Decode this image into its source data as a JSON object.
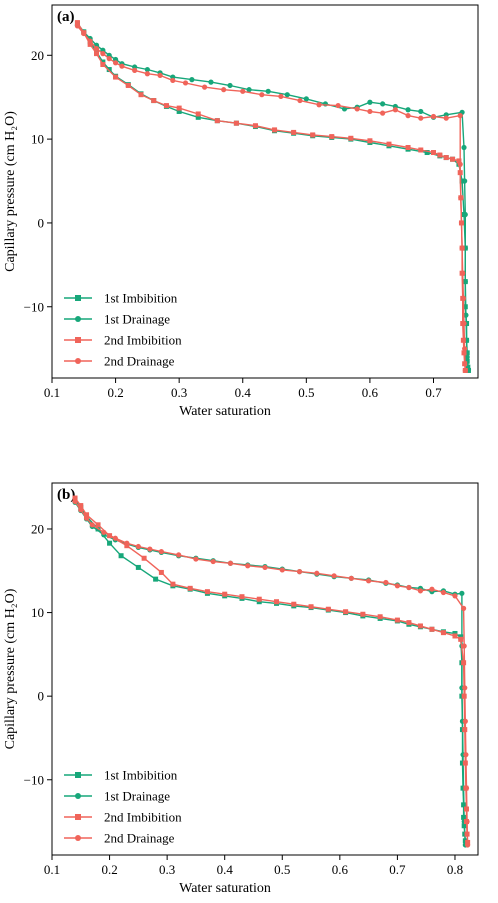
{
  "colors": {
    "imbibition_green": "#17a77a",
    "drainage_green": "#17a77a",
    "imbibition_red": "#f0645a",
    "drainage_red": "#f0645a"
  },
  "chart_data": [
    {
      "type": "line",
      "panel_label": "(a)",
      "xlabel": "Water saturation",
      "ylabel": "Capillary pressure (cm H₂O)",
      "xlim": [
        0.1,
        0.77
      ],
      "ylim": [
        -18.5,
        26
      ],
      "xticks": [
        "0.1",
        "0.2",
        "0.3",
        "0.4",
        "0.5",
        "0.6",
        "0.7"
      ],
      "xtick_values": [
        0.1,
        0.2,
        0.3,
        0.4,
        0.5,
        0.6,
        0.7
      ],
      "yticks": [
        "20",
        "10",
        "0",
        "−10"
      ],
      "ytick_values": [
        20,
        10,
        0,
        -10
      ],
      "legend_position": "bottom-left",
      "grid": false,
      "series": [
        {
          "name": "1st Imbibition",
          "marker": "square",
          "color": "#17a77a",
          "x": [
            0.14,
            0.15,
            0.16,
            0.17,
            0.18,
            0.19,
            0.2,
            0.22,
            0.24,
            0.26,
            0.28,
            0.3,
            0.33,
            0.36,
            0.39,
            0.42,
            0.45,
            0.48,
            0.51,
            0.54,
            0.57,
            0.6,
            0.63,
            0.66,
            0.69,
            0.71,
            0.72,
            0.73,
            0.74,
            0.745,
            0.748,
            0.75,
            0.75,
            0.75,
            0.752,
            0.752,
            0.753,
            0.753,
            0.754,
            0.755
          ],
          "y": [
            23.8,
            22.8,
            21.6,
            20.4,
            19.2,
            18.3,
            17.5,
            16.5,
            15.4,
            14.6,
            13.9,
            13.3,
            12.6,
            12.2,
            11.9,
            11.5,
            11.0,
            10.7,
            10.4,
            10.2,
            10.0,
            9.6,
            9.2,
            8.8,
            8.4,
            8.0,
            7.8,
            7.6,
            7.0,
            5.0,
            1.0,
            -3.0,
            -7.0,
            -10.0,
            -12.0,
            -14.0,
            -15.5,
            -16.5,
            -17.2,
            -17.6
          ]
        },
        {
          "name": "1st Drainage",
          "marker": "circle",
          "color": "#17a77a",
          "x": [
            0.755,
            0.753,
            0.752,
            0.751,
            0.75,
            0.75,
            0.75,
            0.749,
            0.748,
            0.745,
            0.72,
            0.7,
            0.68,
            0.66,
            0.64,
            0.62,
            0.6,
            0.58,
            0.56,
            0.53,
            0.5,
            0.47,
            0.44,
            0.41,
            0.38,
            0.35,
            0.32,
            0.29,
            0.27,
            0.25,
            0.23,
            0.21,
            0.2,
            0.19,
            0.18,
            0.17,
            0.16,
            0.15,
            0.14
          ],
          "y": [
            -17.5,
            -16.0,
            -14.0,
            -11.0,
            -7.0,
            -3.0,
            1.0,
            5.0,
            9.0,
            13.2,
            12.9,
            12.6,
            13.3,
            13.5,
            13.9,
            14.2,
            14.4,
            13.8,
            13.6,
            14.2,
            14.8,
            15.3,
            15.7,
            15.9,
            16.4,
            16.8,
            17.1,
            17.4,
            17.9,
            18.3,
            18.6,
            19.0,
            19.5,
            20.0,
            20.6,
            21.2,
            22.0,
            22.8,
            23.6
          ]
        },
        {
          "name": "2nd Imbibition",
          "marker": "square",
          "color": "#f0645a",
          "x": [
            0.14,
            0.15,
            0.16,
            0.17,
            0.18,
            0.2,
            0.22,
            0.24,
            0.26,
            0.28,
            0.3,
            0.33,
            0.36,
            0.39,
            0.42,
            0.45,
            0.48,
            0.51,
            0.54,
            0.57,
            0.6,
            0.63,
            0.66,
            0.68,
            0.7,
            0.71,
            0.72,
            0.73,
            0.74,
            0.742,
            0.743,
            0.744,
            0.745,
            0.745,
            0.746,
            0.746,
            0.747,
            0.748,
            0.749,
            0.75
          ],
          "y": [
            23.9,
            22.7,
            21.3,
            20.2,
            18.9,
            17.4,
            16.4,
            15.3,
            14.6,
            14.0,
            13.7,
            13.0,
            12.2,
            11.9,
            11.6,
            11.1,
            10.8,
            10.5,
            10.3,
            10.1,
            9.8,
            9.4,
            9.0,
            8.7,
            8.4,
            8.1,
            7.8,
            7.6,
            7.4,
            6.0,
            3.0,
            0.0,
            -3.0,
            -6.0,
            -9.0,
            -12.0,
            -14.0,
            -15.5,
            -16.8,
            -17.6
          ]
        },
        {
          "name": "2nd Drainage",
          "marker": "circle",
          "color": "#f0645a",
          "x": [
            0.75,
            0.749,
            0.748,
            0.747,
            0.746,
            0.745,
            0.744,
            0.743,
            0.742,
            0.742,
            0.72,
            0.7,
            0.68,
            0.66,
            0.64,
            0.62,
            0.6,
            0.58,
            0.55,
            0.52,
            0.49,
            0.46,
            0.43,
            0.4,
            0.37,
            0.34,
            0.31,
            0.29,
            0.27,
            0.25,
            0.23,
            0.21,
            0.2,
            0.19,
            0.18,
            0.17,
            0.16,
            0.15,
            0.14
          ],
          "y": [
            -17.6,
            -15.0,
            -12.0,
            -9.0,
            -6.0,
            -3.0,
            0.0,
            3.0,
            7.0,
            12.8,
            12.5,
            12.7,
            12.5,
            12.8,
            13.5,
            13.1,
            13.3,
            13.6,
            14.0,
            14.1,
            14.6,
            15.1,
            15.3,
            15.7,
            15.9,
            16.2,
            16.7,
            17.0,
            17.6,
            17.8,
            18.2,
            18.7,
            19.1,
            19.6,
            20.2,
            20.8,
            21.7,
            22.6,
            23.5
          ]
        }
      ]
    },
    {
      "type": "line",
      "panel_label": "(b)",
      "xlabel": "Water saturation",
      "ylabel": "Capillary pressure (cm H₂O)",
      "xlim": [
        0.1,
        0.84
      ],
      "ylim": [
        -19,
        25.5
      ],
      "xticks": [
        "0.1",
        "0.2",
        "0.3",
        "0.4",
        "0.5",
        "0.6",
        "0.7",
        "0.8"
      ],
      "xtick_values": [
        0.1,
        0.2,
        0.3,
        0.4,
        0.5,
        0.6,
        0.7,
        0.8
      ],
      "yticks": [
        "20",
        "10",
        "0",
        "−10"
      ],
      "ytick_values": [
        20,
        10,
        0,
        -10
      ],
      "legend_position": "bottom-left",
      "grid": false,
      "series": [
        {
          "name": "1st Imbibition",
          "marker": "square",
          "color": "#17a77a",
          "x": [
            0.14,
            0.15,
            0.16,
            0.18,
            0.2,
            0.22,
            0.25,
            0.28,
            0.31,
            0.34,
            0.37,
            0.4,
            0.43,
            0.46,
            0.49,
            0.52,
            0.55,
            0.58,
            0.61,
            0.64,
            0.67,
            0.7,
            0.72,
            0.74,
            0.76,
            0.78,
            0.8,
            0.81,
            0.812,
            0.812,
            0.813,
            0.813,
            0.814,
            0.815,
            0.815,
            0.816,
            0.817,
            0.818
          ],
          "y": [
            23.5,
            22.6,
            21.5,
            20.0,
            18.3,
            16.8,
            15.4,
            14.0,
            13.2,
            12.8,
            12.3,
            12.0,
            11.7,
            11.3,
            11.1,
            10.8,
            10.6,
            10.3,
            10.0,
            9.6,
            9.3,
            9.0,
            8.6,
            8.3,
            8.0,
            7.7,
            7.5,
            7.1,
            4.0,
            0.0,
            -4.0,
            -8.0,
            -11.0,
            -13.0,
            -14.5,
            -15.5,
            -16.5,
            -17.3
          ]
        },
        {
          "name": "1st Drainage",
          "marker": "circle",
          "color": "#17a77a",
          "x": [
            0.818,
            0.816,
            0.815,
            0.814,
            0.813,
            0.812,
            0.812,
            0.812,
            0.8,
            0.78,
            0.76,
            0.74,
            0.72,
            0.7,
            0.68,
            0.65,
            0.62,
            0.59,
            0.56,
            0.53,
            0.5,
            0.47,
            0.44,
            0.41,
            0.38,
            0.35,
            0.32,
            0.29,
            0.27,
            0.25,
            0.23,
            0.21,
            0.19,
            0.17,
            0.16,
            0.15,
            0.14
          ],
          "y": [
            -17.8,
            -15.0,
            -11.0,
            -7.0,
            -3.0,
            1.0,
            6.0,
            12.3,
            12.2,
            12.6,
            12.5,
            12.9,
            13.0,
            13.3,
            13.5,
            13.9,
            14.1,
            14.3,
            14.6,
            14.9,
            15.2,
            15.5,
            15.7,
            15.9,
            16.2,
            16.5,
            16.8,
            17.2,
            17.5,
            17.8,
            18.2,
            18.7,
            19.3,
            20.3,
            21.2,
            22.2,
            23.2
          ]
        },
        {
          "name": "2nd Imbibition",
          "marker": "square",
          "color": "#f0645a",
          "x": [
            0.14,
            0.15,
            0.16,
            0.18,
            0.2,
            0.23,
            0.26,
            0.29,
            0.31,
            0.34,
            0.37,
            0.4,
            0.43,
            0.46,
            0.49,
            0.52,
            0.55,
            0.58,
            0.61,
            0.64,
            0.67,
            0.7,
            0.72,
            0.74,
            0.76,
            0.78,
            0.8,
            0.81,
            0.815,
            0.816,
            0.817,
            0.818,
            0.819,
            0.82,
            0.82,
            0.821,
            0.822
          ],
          "y": [
            23.7,
            22.8,
            21.7,
            20.5,
            19.2,
            18.0,
            16.5,
            14.8,
            13.4,
            12.9,
            12.5,
            12.2,
            11.9,
            11.6,
            11.3,
            11.0,
            10.7,
            10.4,
            10.1,
            9.8,
            9.5,
            9.1,
            8.8,
            8.4,
            8.0,
            7.6,
            7.2,
            6.8,
            4.0,
            0.0,
            -4.0,
            -8.0,
            -11.0,
            -13.5,
            -15.0,
            -16.5,
            -17.5
          ]
        },
        {
          "name": "2nd Drainage",
          "marker": "circle",
          "color": "#f0645a",
          "x": [
            0.822,
            0.821,
            0.82,
            0.819,
            0.818,
            0.817,
            0.816,
            0.815,
            0.8,
            0.78,
            0.76,
            0.74,
            0.72,
            0.7,
            0.68,
            0.65,
            0.62,
            0.59,
            0.56,
            0.53,
            0.5,
            0.47,
            0.44,
            0.41,
            0.38,
            0.35,
            0.32,
            0.29,
            0.27,
            0.25,
            0.23,
            0.21,
            0.19,
            0.17,
            0.16,
            0.15,
            0.14
          ],
          "y": [
            -17.8,
            -15.0,
            -11.0,
            -7.0,
            -3.0,
            1.0,
            6.0,
            10.5,
            12.0,
            12.4,
            12.8,
            12.6,
            13.0,
            13.2,
            13.6,
            13.8,
            14.1,
            14.4,
            14.7,
            14.9,
            15.1,
            15.4,
            15.6,
            15.9,
            16.1,
            16.4,
            16.9,
            17.3,
            17.6,
            17.9,
            18.3,
            18.9,
            19.6,
            20.5,
            21.3,
            22.3,
            23.3
          ]
        }
      ]
    }
  ]
}
